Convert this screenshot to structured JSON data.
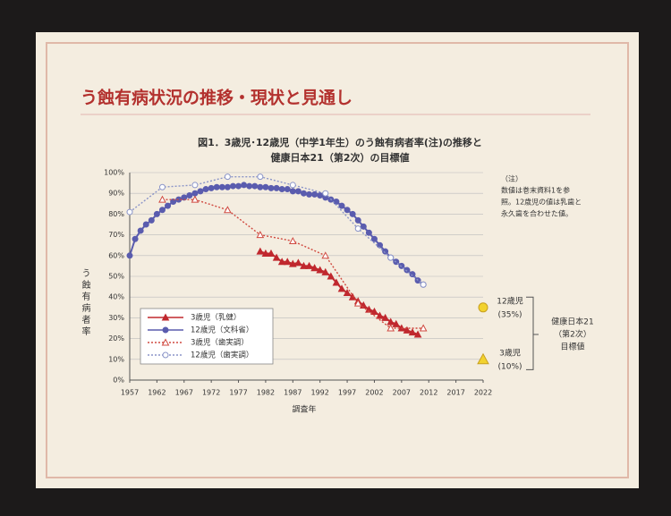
{
  "slide_title": "う蝕有病状況の推移・現状と見通し",
  "chart_data": {
    "type": "line",
    "title": [
      "図1．3歳児･12歳児（中学1年生）のう蝕有病者率(注)の推移と",
      "健康日本21（第2次）の目標値"
    ],
    "y_label": "う蝕有病者率",
    "x_label": "調査年",
    "xlim": [
      1957,
      2022
    ],
    "xticks": [
      1957,
      1962,
      1967,
      1972,
      1977,
      1982,
      1987,
      1992,
      1997,
      2002,
      2007,
      2012,
      2017,
      2022
    ],
    "ylim": [
      0,
      100
    ],
    "yticks": [
      {
        "value": 0,
        "label": "0%"
      },
      {
        "value": 10,
        "label": "10%"
      },
      {
        "value": 20,
        "label": "20%"
      },
      {
        "value": 30,
        "label": "30%"
      },
      {
        "value": 40,
        "label": "40%"
      },
      {
        "value": 50,
        "label": "50%"
      },
      {
        "value": 60,
        "label": "60%"
      },
      {
        "value": 70,
        "label": "70%"
      },
      {
        "value": 80,
        "label": "80%"
      },
      {
        "value": 90,
        "label": "90%"
      },
      {
        "value": 100,
        "label": "100%"
      }
    ],
    "grid": true,
    "legend": "lower-left",
    "series": [
      {
        "name": "3歳児（乳健）",
        "color": "#c0282e",
        "line": "solid",
        "marker": "triangle-filled",
        "x": [
          1981,
          1982,
          1983,
          1984,
          1985,
          1986,
          1987,
          1988,
          1989,
          1990,
          1991,
          1992,
          1993,
          1994,
          1995,
          1996,
          1997,
          1998,
          1999,
          2000,
          2001,
          2002,
          2003,
          2004,
          2005,
          2006,
          2007,
          2008,
          2009,
          2010
        ],
        "values": [
          62,
          61,
          61,
          59,
          57,
          57,
          56,
          56.5,
          55,
          55,
          54,
          53,
          52,
          50,
          47,
          44,
          42,
          40,
          38,
          36,
          34,
          33,
          31,
          30,
          28,
          27,
          25,
          24,
          23,
          22
        ]
      },
      {
        "name": "12歳児（文科省）",
        "color": "#5a5cae",
        "line": "solid",
        "marker": "circle-filled",
        "x": [
          1957,
          1958,
          1959,
          1960,
          1961,
          1962,
          1963,
          1964,
          1965,
          1966,
          1967,
          1968,
          1969,
          1970,
          1971,
          1972,
          1973,
          1974,
          1975,
          1976,
          1977,
          1978,
          1979,
          1980,
          1981,
          1982,
          1983,
          1984,
          1985,
          1986,
          1987,
          1988,
          1989,
          1990,
          1991,
          1992,
          1993,
          1994,
          1995,
          1996,
          1997,
          1998,
          1999,
          2000,
          2001,
          2002,
          2003,
          2004,
          2005,
          2006,
          2007,
          2008,
          2009,
          2010,
          2011
        ],
        "values": [
          60,
          68,
          72,
          75,
          77,
          80,
          82,
          84,
          86,
          87,
          88,
          89,
          90,
          91,
          92,
          92.5,
          93,
          93,
          93,
          93.5,
          93.5,
          94,
          93.5,
          93.5,
          93,
          93,
          92.5,
          92.5,
          92,
          92,
          91,
          91,
          90,
          89.5,
          89.5,
          89,
          88,
          87,
          86,
          84,
          82,
          80,
          77,
          74,
          71,
          68,
          65,
          62,
          59,
          57,
          55,
          53,
          51,
          48,
          46
        ]
      },
      {
        "name": "3歳児（歯実調）",
        "color": "#d04a40",
        "line": "dotted",
        "marker": "triangle-open",
        "x": [
          1963,
          1969,
          1975,
          1981,
          1987,
          1993,
          1999,
          2005,
          2011
        ],
        "values": [
          87,
          87,
          82,
          70,
          67,
          60,
          37,
          25,
          25
        ]
      },
      {
        "name": "12歳児（歯実調）",
        "color": "#8a94c8",
        "line": "dotted",
        "marker": "circle-open",
        "x": [
          1957,
          1963,
          1969,
          1975,
          1981,
          1987,
          1993,
          1999,
          2005,
          2011
        ],
        "values": [
          81,
          93,
          94,
          98,
          98,
          94,
          90,
          73,
          59,
          46
        ]
      }
    ],
    "targets": [
      {
        "name": "12歳児",
        "color": "#f2d22e",
        "marker": "circle",
        "x": [
          2022
        ],
        "values": [
          35
        ],
        "value_labels": [
          "(35%)"
        ]
      },
      {
        "name": "3歳児",
        "color": "#f2d22e",
        "marker": "triangle",
        "x": [
          2022
        ],
        "values": [
          10
        ],
        "value_labels": [
          "(10%)"
        ]
      }
    ],
    "target_note": [
      "健康日本21",
      "（第2次）",
      "目標値"
    ],
    "note": [
      "（注）",
      "数値は巻末資料1を参",
      "照。12歳児の値は乳歯と",
      "永久歯を合わせた値。"
    ]
  }
}
